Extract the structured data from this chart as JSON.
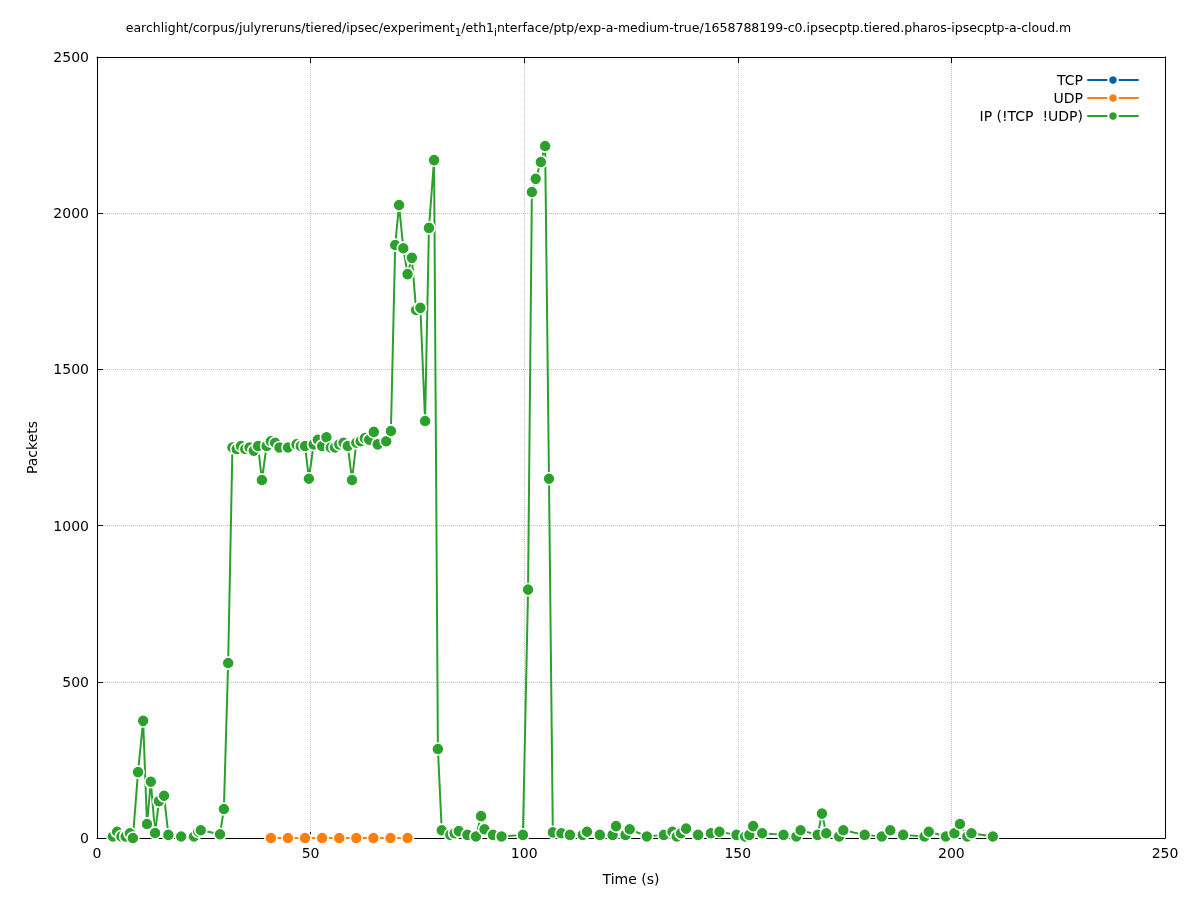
{
  "chart_data": {
    "type": "line",
    "title": "earchlight/corpus/julyreruns/tiered/ipsec/experiment$_{1}$/eth1$_{i}$nterface/ptp/exp-a-medium-true/1658788199-c0.ipsecptp.tiered.pharos-ipsecptp-a-cloud.m",
    "xlabel": "Time (s)",
    "ylabel": "Packets",
    "xlim": [
      0,
      250
    ],
    "xticks": [
      0,
      50,
      100,
      150,
      200,
      250
    ],
    "ylim": [
      0,
      2500
    ],
    "yticks": [
      0,
      500,
      1000,
      1500,
      2000,
      2500
    ],
    "grid": true,
    "legend": "top right",
    "marker": "circle",
    "line_style": "solid",
    "series": [
      {
        "name": "TCP",
        "color": "#0060ad"
      },
      {
        "name": "UDP",
        "color": "#ff7f0e",
        "x": [
          40.7,
          44.7,
          48.7,
          52.7,
          56.7,
          60.7,
          64.7,
          68.7,
          72.7
        ],
        "values": [
          0,
          0,
          0,
          0,
          0,
          0,
          0,
          0,
          0
        ]
      },
      {
        "name": "IP (!TCP  !UDP)",
        "color": "#2ca02c",
        "x": [
          3.7,
          4.7,
          5.7,
          6.7,
          7.7,
          8.4,
          9.6,
          10.8,
          11.7,
          12.6,
          13.6,
          14.5,
          15.7,
          16.7,
          19.7,
          22.7,
          23.7,
          24.3,
          28.8,
          29.7,
          30.7,
          31.7,
          32.7,
          33.7,
          34.7,
          35.7,
          36.7,
          37.7,
          38.6,
          39.7,
          40.7,
          41.7,
          42.7,
          44.7,
          46.7,
          47.7,
          48.7,
          49.6,
          50.7,
          51.7,
          52.7,
          53.7,
          54.7,
          55.7,
          56.7,
          57.7,
          58.7,
          59.7,
          60.7,
          61.7,
          62.7,
          63.7,
          64.8,
          65.7,
          67.7,
          68.8,
          69.8,
          70.7,
          71.7,
          72.7,
          73.7,
          74.7,
          75.7,
          76.8,
          77.7,
          78.9,
          79.8,
          80.7,
          82.7,
          83.7,
          84.7,
          86.7,
          88.7,
          89.9,
          90.7,
          92.7,
          94.7,
          99.7,
          100.9,
          101.8,
          102.7,
          103.9,
          104.9,
          105.8,
          106.7,
          108.7,
          110.7,
          113.7,
          114.7,
          117.7,
          120.7,
          121.5,
          123.7,
          124.7,
          128.7,
          132.7,
          134.7,
          135.7,
          136.7,
          137.9,
          140.7,
          143.7,
          145.7,
          149.7,
          151.7,
          152.7,
          153.6,
          155.7,
          160.7,
          163.7,
          164.7,
          168.7,
          169.7,
          170.7,
          173.7,
          174.7,
          179.7,
          183.7,
          185.7,
          188.7,
          193.7,
          194.7,
          198.7,
          200.7,
          202.0,
          203.7,
          204.7,
          209.7
        ],
        "values": [
          5,
          20,
          5,
          5,
          15,
          0,
          211,
          375,
          45,
          180,
          16,
          118,
          135,
          10,
          5,
          5,
          20,
          25,
          12,
          93,
          560,
          1250,
          1245,
          1255,
          1245,
          1250,
          1240,
          1255,
          1146,
          1255,
          1270,
          1265,
          1250,
          1250,
          1260,
          1255,
          1255,
          1150,
          1260,
          1275,
          1255,
          1283,
          1250,
          1250,
          1260,
          1265,
          1255,
          1146,
          1265,
          1270,
          1280,
          1275,
          1300,
          1260,
          1270,
          1303,
          1898,
          2026,
          1888,
          1805,
          1857,
          1690,
          1697,
          1335,
          1953,
          2170,
          285,
          25,
          10,
          15,
          22,
          10,
          5,
          70,
          28,
          10,
          5,
          10,
          795,
          2068,
          2110,
          2164,
          2215,
          1150,
          18,
          15,
          10,
          10,
          20,
          10,
          10,
          38,
          10,
          28,
          5,
          10,
          20,
          5,
          15,
          30,
          10,
          15,
          20,
          10,
          5,
          10,
          38,
          15,
          10,
          5,
          25,
          10,
          78,
          15,
          5,
          25,
          10,
          5,
          25,
          10,
          5,
          20,
          5,
          15,
          45,
          5,
          15,
          5
        ]
      }
    ]
  }
}
